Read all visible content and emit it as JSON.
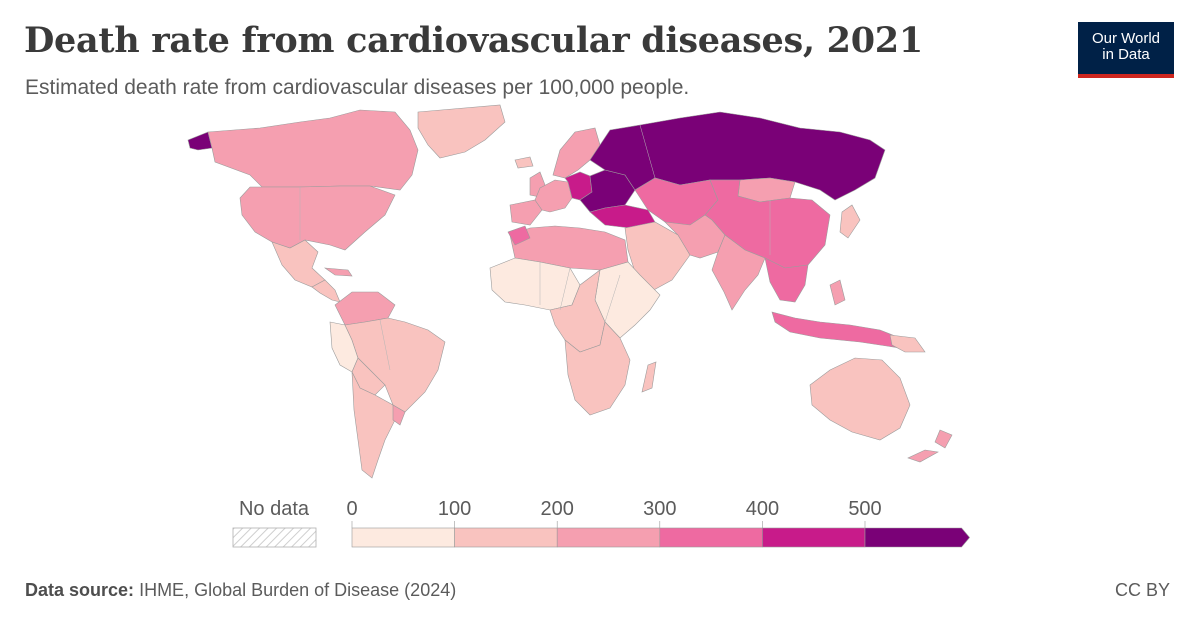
{
  "header": {
    "title": "Death rate from cardiovascular diseases, 2021",
    "subtitle": "Estimated death rate from cardiovascular diseases per 100,000 people."
  },
  "logo": {
    "line1": "Our World",
    "line2": "in Data"
  },
  "legend": {
    "no_data_label": "No data",
    "ticks": [
      "0",
      "100",
      "200",
      "300",
      "400",
      "500"
    ],
    "bins": [
      {
        "range": "0-100",
        "color": "#fdeae0"
      },
      {
        "range": "100-200",
        "color": "#f9c3bf"
      },
      {
        "range": "200-300",
        "color": "#f59fb0"
      },
      {
        "range": "300-400",
        "color": "#ee6aa1"
      },
      {
        "range": "400-500",
        "color": "#c81b8a"
      },
      {
        "range": "500+",
        "color": "#7a0177"
      }
    ]
  },
  "footer": {
    "source_label": "Data source:",
    "source_text": "IHME, Global Burden of Disease (2024)",
    "license": "CC BY"
  },
  "colors": {
    "no_data": "#ffffff",
    "border": "#9c9c9c",
    "brand_navy": "#002147",
    "brand_red": "#ce261e"
  }
}
